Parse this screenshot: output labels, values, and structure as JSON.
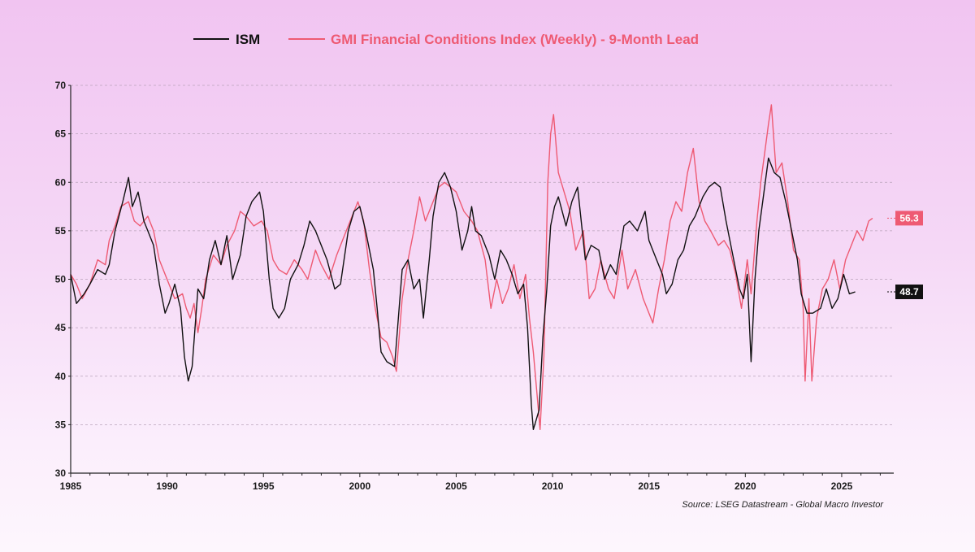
{
  "colors": {
    "ism": "#111111",
    "gmi": "#ee5a73",
    "grid": "#b9a3bb",
    "axis": "#222222"
  },
  "legend": {
    "ism_label": "ISM",
    "gmi_label": "GMI Financial Conditions Index (Weekly) - 9-Month Lead"
  },
  "source": "Source: LSEG Datastream - Global Macro Investor",
  "chart_data": {
    "type": "line",
    "title": "",
    "xlabel": "",
    "ylabel": "",
    "xlim": [
      1985,
      2027.7
    ],
    "ylim": [
      30,
      70
    ],
    "grid": true,
    "legend_position": "top",
    "x_ticks": [
      1985,
      1990,
      1995,
      2000,
      2005,
      2010,
      2015,
      2020,
      2025
    ],
    "y_ticks": [
      30,
      35,
      40,
      45,
      50,
      55,
      60,
      65,
      70
    ],
    "end_labels": {
      "gmi": "56.3",
      "ism": "48.7"
    },
    "series": [
      {
        "name": "ISM",
        "color": "#111111",
        "points": [
          [
            1985.0,
            50.5
          ],
          [
            1985.3,
            47.5
          ],
          [
            1985.7,
            48.5
          ],
          [
            1986.0,
            49.5
          ],
          [
            1986.4,
            51
          ],
          [
            1986.8,
            50.5
          ],
          [
            1987.0,
            51.5
          ],
          [
            1987.3,
            55
          ],
          [
            1987.7,
            58
          ],
          [
            1988.0,
            60.5
          ],
          [
            1988.2,
            57.5
          ],
          [
            1988.5,
            59
          ],
          [
            1988.8,
            56
          ],
          [
            1989.0,
            55
          ],
          [
            1989.3,
            53.5
          ],
          [
            1989.6,
            49.5
          ],
          [
            1989.9,
            46.5
          ],
          [
            1990.1,
            47.5
          ],
          [
            1990.4,
            49.5
          ],
          [
            1990.7,
            47
          ],
          [
            1990.9,
            42
          ],
          [
            1991.1,
            39.5
          ],
          [
            1991.3,
            41
          ],
          [
            1991.6,
            49
          ],
          [
            1991.9,
            48
          ],
          [
            1992.2,
            52
          ],
          [
            1992.5,
            54
          ],
          [
            1992.8,
            51.5
          ],
          [
            1993.1,
            54.5
          ],
          [
            1993.4,
            50
          ],
          [
            1993.8,
            52.5
          ],
          [
            1994.1,
            56.5
          ],
          [
            1994.4,
            58
          ],
          [
            1994.8,
            59
          ],
          [
            1995.0,
            57
          ],
          [
            1995.3,
            50
          ],
          [
            1995.5,
            47
          ],
          [
            1995.8,
            46
          ],
          [
            1996.1,
            47
          ],
          [
            1996.4,
            50
          ],
          [
            1996.8,
            51.5
          ],
          [
            1997.1,
            53.5
          ],
          [
            1997.4,
            56
          ],
          [
            1997.7,
            55
          ],
          [
            1998.0,
            53.5
          ],
          [
            1998.3,
            52
          ],
          [
            1998.7,
            49
          ],
          [
            1999.0,
            49.5
          ],
          [
            1999.4,
            55
          ],
          [
            1999.7,
            57
          ],
          [
            2000.0,
            57.5
          ],
          [
            2000.3,
            55
          ],
          [
            2000.7,
            51
          ],
          [
            2000.9,
            47
          ],
          [
            2001.1,
            42.5
          ],
          [
            2001.4,
            41.5
          ],
          [
            2001.8,
            41
          ],
          [
            2002.0,
            46
          ],
          [
            2002.2,
            51
          ],
          [
            2002.5,
            52
          ],
          [
            2002.8,
            49
          ],
          [
            2003.1,
            50
          ],
          [
            2003.3,
            46
          ],
          [
            2003.6,
            52
          ],
          [
            2003.8,
            56.5
          ],
          [
            2004.1,
            60
          ],
          [
            2004.4,
            61
          ],
          [
            2004.7,
            59.5
          ],
          [
            2005.0,
            57
          ],
          [
            2005.3,
            53
          ],
          [
            2005.6,
            55
          ],
          [
            2005.8,
            57.5
          ],
          [
            2006.0,
            55
          ],
          [
            2006.3,
            54.5
          ],
          [
            2006.7,
            52.5
          ],
          [
            2007.0,
            50
          ],
          [
            2007.3,
            53
          ],
          [
            2007.6,
            52
          ],
          [
            2007.9,
            50.5
          ],
          [
            2008.2,
            48.5
          ],
          [
            2008.5,
            49.5
          ],
          [
            2008.7,
            45
          ],
          [
            2008.9,
            37
          ],
          [
            2009.0,
            34.5
          ],
          [
            2009.3,
            36.5
          ],
          [
            2009.5,
            44
          ],
          [
            2009.7,
            49
          ],
          [
            2009.9,
            55.5
          ],
          [
            2010.1,
            57.5
          ],
          [
            2010.3,
            58.5
          ],
          [
            2010.7,
            55.5
          ],
          [
            2011.0,
            58
          ],
          [
            2011.3,
            59.5
          ],
          [
            2011.7,
            52
          ],
          [
            2012.0,
            53.5
          ],
          [
            2012.4,
            53
          ],
          [
            2012.7,
            50
          ],
          [
            2013.0,
            51.5
          ],
          [
            2013.3,
            50.5
          ],
          [
            2013.7,
            55.5
          ],
          [
            2014.0,
            56
          ],
          [
            2014.4,
            55
          ],
          [
            2014.8,
            57
          ],
          [
            2015.0,
            54
          ],
          [
            2015.3,
            52.5
          ],
          [
            2015.7,
            50.5
          ],
          [
            2015.9,
            48.5
          ],
          [
            2016.2,
            49.5
          ],
          [
            2016.5,
            52
          ],
          [
            2016.8,
            53
          ],
          [
            2017.1,
            55.5
          ],
          [
            2017.4,
            56.5
          ],
          [
            2017.8,
            58.5
          ],
          [
            2018.1,
            59.5
          ],
          [
            2018.4,
            60
          ],
          [
            2018.7,
            59.5
          ],
          [
            2019.0,
            56
          ],
          [
            2019.3,
            53
          ],
          [
            2019.7,
            49
          ],
          [
            2019.9,
            48
          ],
          [
            2020.1,
            50.5
          ],
          [
            2020.3,
            41.5
          ],
          [
            2020.5,
            50
          ],
          [
            2020.7,
            55
          ],
          [
            2020.9,
            58
          ],
          [
            2021.2,
            62.5
          ],
          [
            2021.5,
            61
          ],
          [
            2021.8,
            60.5
          ],
          [
            2022.1,
            58
          ],
          [
            2022.4,
            55
          ],
          [
            2022.7,
            52
          ],
          [
            2022.9,
            48.5
          ],
          [
            2023.2,
            46.5
          ],
          [
            2023.5,
            46.5
          ],
          [
            2023.9,
            47
          ],
          [
            2024.2,
            49
          ],
          [
            2024.5,
            47
          ],
          [
            2024.8,
            48
          ],
          [
            2025.1,
            50.5
          ],
          [
            2025.4,
            48.5
          ],
          [
            2025.7,
            48.7
          ]
        ]
      },
      {
        "name": "GMI Financial Conditions Index (Weekly) - 9-Month Lead",
        "color": "#ee5a73",
        "points": [
          [
            1985.0,
            50.5
          ],
          [
            1985.3,
            49.5
          ],
          [
            1985.6,
            48
          ],
          [
            1986.0,
            49.5
          ],
          [
            1986.4,
            52
          ],
          [
            1986.8,
            51.5
          ],
          [
            1987.0,
            54
          ],
          [
            1987.3,
            55.5
          ],
          [
            1987.6,
            57.5
          ],
          [
            1988.0,
            58
          ],
          [
            1988.3,
            56
          ],
          [
            1988.6,
            55.5
          ],
          [
            1989.0,
            56.5
          ],
          [
            1989.3,
            55
          ],
          [
            1989.6,
            52
          ],
          [
            1990.0,
            50
          ],
          [
            1990.4,
            48
          ],
          [
            1990.8,
            48.5
          ],
          [
            1991.0,
            47
          ],
          [
            1991.2,
            46
          ],
          [
            1991.4,
            47.5
          ],
          [
            1991.6,
            44.5
          ],
          [
            1991.8,
            47
          ],
          [
            1992.0,
            50
          ],
          [
            1992.4,
            52.5
          ],
          [
            1992.8,
            51.5
          ],
          [
            1993.1,
            53.5
          ],
          [
            1993.5,
            55
          ],
          [
            1993.8,
            57
          ],
          [
            1994.1,
            56.5
          ],
          [
            1994.5,
            55.5
          ],
          [
            1994.9,
            56
          ],
          [
            1995.2,
            55
          ],
          [
            1995.5,
            52
          ],
          [
            1995.8,
            51
          ],
          [
            1996.2,
            50.5
          ],
          [
            1996.6,
            52
          ],
          [
            1997.0,
            51
          ],
          [
            1997.3,
            50
          ],
          [
            1997.7,
            53
          ],
          [
            1998.0,
            51.5
          ],
          [
            1998.4,
            50
          ],
          [
            1998.8,
            52.5
          ],
          [
            1999.1,
            54
          ],
          [
            1999.5,
            56
          ],
          [
            1999.9,
            58
          ],
          [
            2000.2,
            56
          ],
          [
            2000.5,
            51
          ],
          [
            2000.8,
            47
          ],
          [
            2001.1,
            44
          ],
          [
            2001.4,
            43.5
          ],
          [
            2001.7,
            42
          ],
          [
            2001.9,
            40.5
          ],
          [
            2002.2,
            48
          ],
          [
            2002.5,
            52
          ],
          [
            2002.8,
            55
          ],
          [
            2003.1,
            58.5
          ],
          [
            2003.4,
            56
          ],
          [
            2003.8,
            58
          ],
          [
            2004.1,
            59.5
          ],
          [
            2004.4,
            60
          ],
          [
            2004.7,
            59.5
          ],
          [
            2005.0,
            59
          ],
          [
            2005.4,
            57
          ],
          [
            2005.8,
            56
          ],
          [
            2006.1,
            55
          ],
          [
            2006.5,
            52
          ],
          [
            2006.8,
            47
          ],
          [
            2007.1,
            50
          ],
          [
            2007.4,
            47.5
          ],
          [
            2007.7,
            49
          ],
          [
            2008.0,
            51.5
          ],
          [
            2008.3,
            48
          ],
          [
            2008.6,
            50.5
          ],
          [
            2008.8,
            46
          ],
          [
            2009.0,
            42.5
          ],
          [
            2009.2,
            38
          ],
          [
            2009.35,
            34.5
          ],
          [
            2009.55,
            42
          ],
          [
            2009.75,
            60
          ],
          [
            2009.9,
            65
          ],
          [
            2010.05,
            67
          ],
          [
            2010.3,
            61
          ],
          [
            2010.6,
            59
          ],
          [
            2010.9,
            57
          ],
          [
            2011.2,
            53
          ],
          [
            2011.6,
            55
          ],
          [
            2011.9,
            48
          ],
          [
            2012.2,
            49
          ],
          [
            2012.5,
            52
          ],
          [
            2012.9,
            49
          ],
          [
            2013.2,
            48
          ],
          [
            2013.6,
            53
          ],
          [
            2013.9,
            49
          ],
          [
            2014.3,
            51
          ],
          [
            2014.7,
            48
          ],
          [
            2015.0,
            46.5
          ],
          [
            2015.2,
            45.5
          ],
          [
            2015.5,
            49
          ],
          [
            2015.8,
            52
          ],
          [
            2016.1,
            56
          ],
          [
            2016.4,
            58
          ],
          [
            2016.7,
            57
          ],
          [
            2017.0,
            61
          ],
          [
            2017.3,
            63.5
          ],
          [
            2017.6,
            58
          ],
          [
            2017.9,
            56
          ],
          [
            2018.2,
            55
          ],
          [
            2018.6,
            53.5
          ],
          [
            2018.9,
            54
          ],
          [
            2019.2,
            53
          ],
          [
            2019.5,
            50.5
          ],
          [
            2019.8,
            47
          ],
          [
            2020.1,
            52
          ],
          [
            2020.3,
            48.5
          ],
          [
            2020.6,
            56
          ],
          [
            2020.8,
            60
          ],
          [
            2021.0,
            63
          ],
          [
            2021.2,
            66
          ],
          [
            2021.35,
            68
          ],
          [
            2021.6,
            61
          ],
          [
            2021.9,
            62
          ],
          [
            2022.2,
            58
          ],
          [
            2022.5,
            53
          ],
          [
            2022.8,
            52
          ],
          [
            2023.0,
            47
          ],
          [
            2023.1,
            39.5
          ],
          [
            2023.3,
            48
          ],
          [
            2023.45,
            39.5
          ],
          [
            2023.7,
            46
          ],
          [
            2024.0,
            49
          ],
          [
            2024.3,
            50
          ],
          [
            2024.6,
            52
          ],
          [
            2024.9,
            49
          ],
          [
            2025.2,
            52
          ],
          [
            2025.5,
            53.5
          ],
          [
            2025.8,
            55
          ],
          [
            2026.1,
            54
          ],
          [
            2026.4,
            56
          ],
          [
            2026.6,
            56.3
          ]
        ]
      }
    ]
  }
}
